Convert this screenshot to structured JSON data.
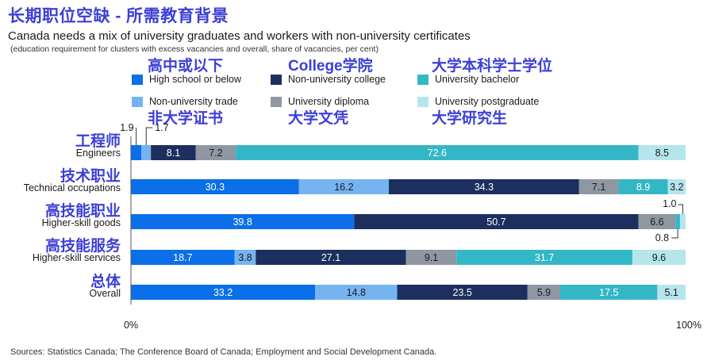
{
  "header": {
    "title_cn": "长期职位空缺 - 所需教育背景",
    "title_en": "Canada needs a mix of university graduates and workers with non-university certificates",
    "subtitle": "(education requirement for clusters with excess vacancies and overall, share of vacancies, per cent)"
  },
  "legend": [
    {
      "label": "High school or below",
      "label_cn": "高中或以下",
      "color": "#0a6fe8"
    },
    {
      "label": "Non-university college",
      "label_cn": "College学院",
      "color": "#1c2f5e"
    },
    {
      "label": "University bachelor",
      "label_cn": "大学本科学士学位",
      "color": "#33b7c6"
    },
    {
      "label": "Non-university trade",
      "label_cn": "非大学证书",
      "color": "#76b4f1"
    },
    {
      "label": "University diploma",
      "label_cn": "大学文凭",
      "color": "#8f97a3"
    },
    {
      "label": "University postgraduate",
      "label_cn": "大学研究生",
      "color": "#b4e6ec"
    }
  ],
  "chart_data": {
    "type": "bar",
    "orientation": "horizontal",
    "stacked": true,
    "categories": [
      "Engineers",
      "Technical occupations",
      "Higher-skill goods",
      "Higher-skill services",
      "Overall"
    ],
    "categories_cn": [
      "工程师",
      "技术职业",
      "高技能职业",
      "高技能服务",
      "总体"
    ],
    "series": [
      {
        "name": "High school or below",
        "values": [
          1.9,
          30.3,
          39.8,
          18.7,
          33.2
        ]
      },
      {
        "name": "Non-university trade",
        "values": [
          1.7,
          16.2,
          0,
          3.8,
          14.8
        ]
      },
      {
        "name": "Non-university college",
        "values": [
          8.1,
          34.3,
          50.7,
          27.1,
          23.5
        ]
      },
      {
        "name": "University diploma",
        "values": [
          7.2,
          7.1,
          6.6,
          9.1,
          5.9
        ]
      },
      {
        "name": "University bachelor",
        "values": [
          72.6,
          8.9,
          0.8,
          31.7,
          17.5
        ]
      },
      {
        "name": "University postgraduate",
        "values": [
          8.5,
          3.2,
          1.0,
          9.6,
          5.1
        ]
      }
    ],
    "xlim": [
      0,
      100
    ],
    "x_ticks": [
      "0%",
      "100%"
    ]
  },
  "footer": {
    "source": "Sources: Statistics Canada; The Conference Board of Canada; Employment and Social Development Canada."
  }
}
